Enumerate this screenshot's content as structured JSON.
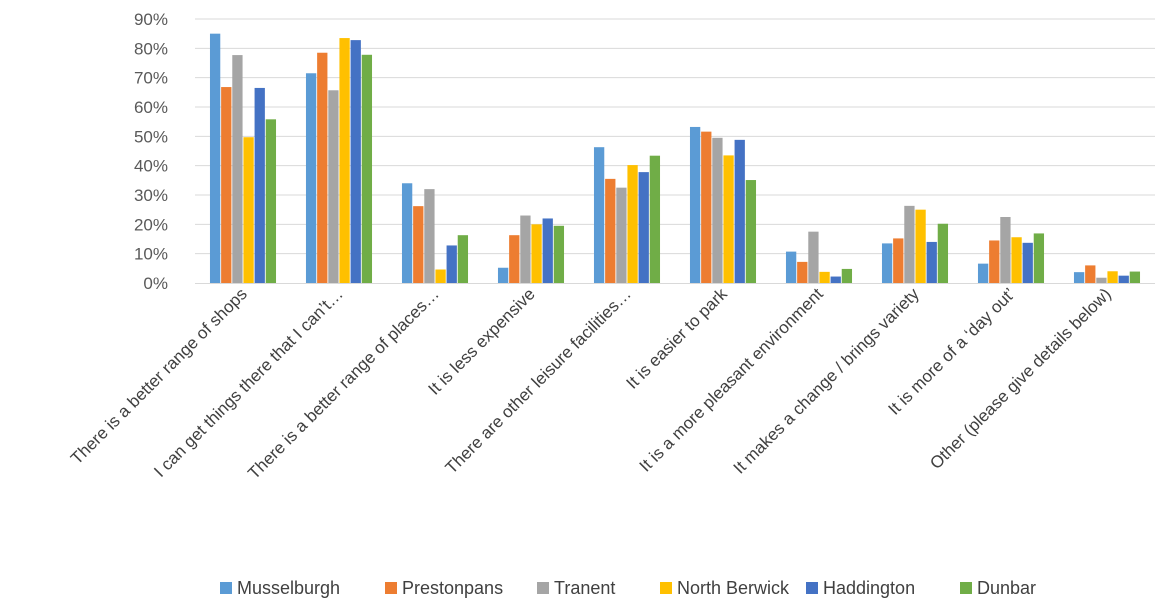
{
  "chart_data": {
    "type": "bar",
    "categories": [
      "There is a better range of shops",
      "I can get things there that I can’t…",
      "There is a better range of places…",
      "It is less expensive",
      "There are other leisure facilities…",
      "It is easier to park",
      "It is a more pleasant environment",
      "It makes a change / brings variety",
      "It is more of a ‘day out’",
      "Other (please give details below)"
    ],
    "series": [
      {
        "name": "Musselburgh",
        "color": "#5B9BD5",
        "values": [
          0.85,
          0.715,
          0.34,
          0.052,
          0.463,
          0.532,
          0.107,
          0.135,
          0.066,
          0.037
        ]
      },
      {
        "name": "Prestonpans",
        "color": "#ED7D31",
        "values": [
          0.668,
          0.785,
          0.262,
          0.163,
          0.355,
          0.516,
          0.072,
          0.152,
          0.145,
          0.06
        ]
      },
      {
        "name": "Tranent",
        "color": "#A5A5A5",
        "values": [
          0.777,
          0.657,
          0.32,
          0.23,
          0.325,
          0.495,
          0.175,
          0.263,
          0.225,
          0.018
        ]
      },
      {
        "name": "North Berwick",
        "color": "#FFC000",
        "values": [
          0.497,
          0.835,
          0.046,
          0.2,
          0.402,
          0.435,
          0.038,
          0.25,
          0.156,
          0.04
        ]
      },
      {
        "name": "Haddington",
        "color": "#4472C4",
        "values": [
          0.665,
          0.828,
          0.128,
          0.22,
          0.378,
          0.488,
          0.022,
          0.14,
          0.137,
          0.025
        ]
      },
      {
        "name": "Dunbar",
        "color": "#70AD47",
        "values": [
          0.558,
          0.778,
          0.163,
          0.195,
          0.434,
          0.351,
          0.048,
          0.202,
          0.169,
          0.039
        ]
      }
    ],
    "ylim": [
      0,
      0.9
    ],
    "yticks": [
      "0%",
      "10%",
      "20%",
      "30%",
      "40%",
      "50%",
      "60%",
      "70%",
      "80%",
      "90%"
    ],
    "grid": true,
    "legend": "bottom"
  }
}
